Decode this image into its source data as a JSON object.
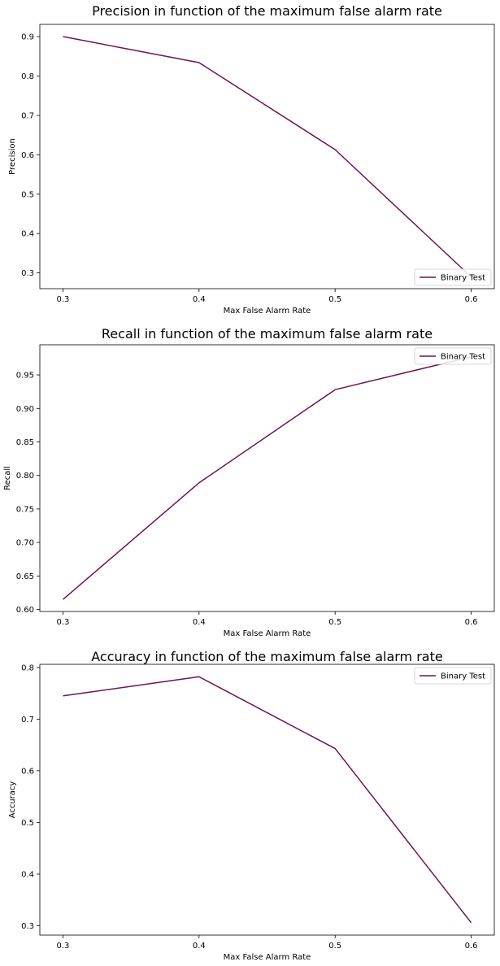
{
  "chart_data": [
    {
      "type": "line",
      "title": "Precision in function of the maximum false alarm  rate",
      "xlabel": "Max False Alarm Rate",
      "ylabel": "Precision",
      "x": [
        0.3,
        0.4,
        0.5,
        0.6
      ],
      "xticks": [
        "0.3",
        "0.4",
        "0.5",
        "0.6"
      ],
      "xlim": [
        0.283,
        0.617
      ],
      "yticks": [
        "0.3",
        "0.4",
        "0.5",
        "0.6",
        "0.7",
        "0.8",
        "0.9"
      ],
      "ylim": [
        0.26,
        0.931
      ],
      "series": [
        {
          "name": "Binary Test",
          "values": [
            0.9,
            0.834,
            0.613,
            0.29
          ],
          "color": "#6b1650"
        }
      ],
      "legend_position": "lower-right",
      "grid": false
    },
    {
      "type": "line",
      "title": "Recall in function of the maximum false alarm  rate",
      "xlabel": "Max False Alarm Rate",
      "ylabel": "Recall",
      "x": [
        0.3,
        0.4,
        0.5,
        0.6
      ],
      "xticks": [
        "0.3",
        "0.4",
        "0.5",
        "0.6"
      ],
      "xlim": [
        0.283,
        0.617
      ],
      "yticks": [
        "0.60",
        "0.65",
        "0.70",
        "0.75",
        "0.80",
        "0.85",
        "0.90",
        "0.95"
      ],
      "ylim": [
        0.597,
        0.995
      ],
      "series": [
        {
          "name": "Binary Test",
          "values": [
            0.615,
            0.789,
            0.928,
            0.977
          ],
          "color": "#6b1650"
        }
      ],
      "legend_position": "upper-right",
      "grid": false
    },
    {
      "type": "line",
      "title": "Accuracy in function of the maximum false alarm  rate",
      "xlabel": "Max False Alarm Rate",
      "ylabel": "Accuracy",
      "x": [
        0.3,
        0.4,
        0.5,
        0.6
      ],
      "xticks": [
        "0.3",
        "0.4",
        "0.5",
        "0.6"
      ],
      "xlim": [
        0.283,
        0.617
      ],
      "yticks": [
        "0.3",
        "0.4",
        "0.5",
        "0.6",
        "0.7",
        "0.8"
      ],
      "ylim": [
        0.282,
        0.806
      ],
      "series": [
        {
          "name": "Binary Test",
          "values": [
            0.745,
            0.782,
            0.643,
            0.306
          ],
          "color": "#6b1650"
        }
      ],
      "legend_position": "upper-right",
      "grid": false
    }
  ]
}
